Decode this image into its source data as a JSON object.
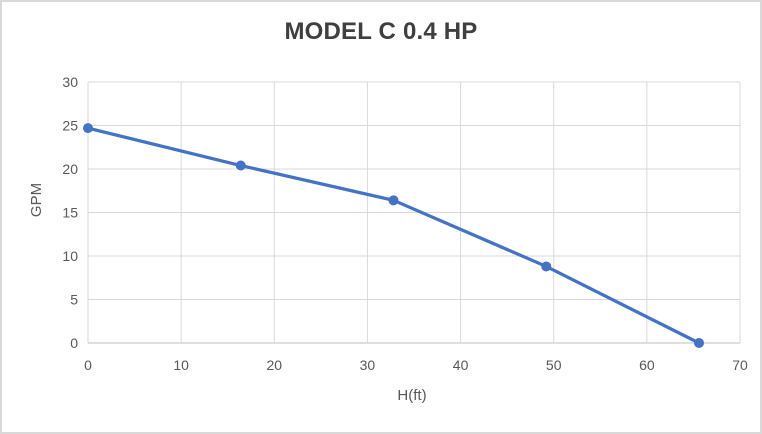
{
  "chart_data": {
    "type": "line",
    "title": "MODEL C 0.4 HP",
    "xlabel": "H(ft)",
    "ylabel": "GPM",
    "x": [
      0,
      16.4,
      32.8,
      49.2,
      65.6
    ],
    "y": [
      24.7,
      20.4,
      16.4,
      8.8,
      0
    ],
    "xlim": [
      0,
      70
    ],
    "ylim": [
      0,
      30
    ],
    "x_ticks": [
      0,
      10,
      20,
      30,
      40,
      50,
      60,
      70
    ],
    "y_ticks": [
      0,
      5,
      10,
      15,
      20,
      25,
      30
    ],
    "grid": true,
    "legend_position": "none",
    "colors": {
      "line": "#4472C4",
      "marker": "#4472C4",
      "gridline": "#D9D9D9",
      "axis_line": "#BFBFBF",
      "tick_text": "#595959",
      "title_text": "#3F3F3F",
      "chart_border": "#D9D9D9",
      "background": "#FFFFFF"
    }
  }
}
